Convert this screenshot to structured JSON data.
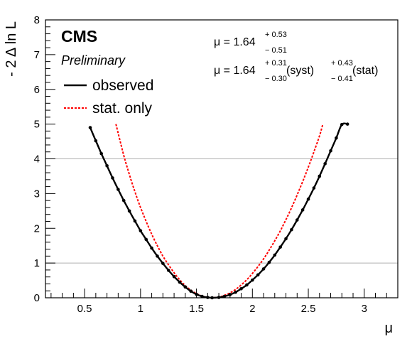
{
  "chart_data": {
    "type": "line",
    "xlabel": "μ",
    "ylabel": "- 2 Δ ln L",
    "xlim": [
      0.15,
      3.3
    ],
    "ylim": [
      0,
      8
    ],
    "x_ticks": [
      {
        "v": 0.5,
        "label": "0.5"
      },
      {
        "v": 1,
        "label": "1"
      },
      {
        "v": 1.5,
        "label": "1.5"
      },
      {
        "v": 2,
        "label": "2"
      },
      {
        "v": 2.5,
        "label": "2.5"
      },
      {
        "v": 3,
        "label": "3"
      }
    ],
    "y_ticks": [
      {
        "v": 0,
        "label": "0"
      },
      {
        "v": 1,
        "label": "1"
      },
      {
        "v": 2,
        "label": "2"
      },
      {
        "v": 3,
        "label": "3"
      },
      {
        "v": 4,
        "label": "4"
      },
      {
        "v": 5,
        "label": "5"
      },
      {
        "v": 6,
        "label": "6"
      },
      {
        "v": 7,
        "label": "7"
      },
      {
        "v": 8,
        "label": "8"
      }
    ],
    "reference_lines": [
      1,
      4
    ],
    "series": [
      {
        "name": "observed",
        "color": "#000000",
        "style": "solid",
        "markers": true,
        "x": [
          0.55,
          0.6,
          0.65,
          0.7,
          0.75,
          0.8,
          0.85,
          0.9,
          0.95,
          1.0,
          1.05,
          1.1,
          1.15,
          1.2,
          1.25,
          1.3,
          1.35,
          1.4,
          1.45,
          1.5,
          1.55,
          1.6,
          1.64,
          1.7,
          1.75,
          1.8,
          1.85,
          1.9,
          1.95,
          2.0,
          2.05,
          2.1,
          2.15,
          2.2,
          2.25,
          2.3,
          2.35,
          2.4,
          2.45,
          2.5,
          2.55,
          2.6,
          2.65,
          2.7,
          2.75,
          2.8,
          2.85
        ],
        "y": [
          4.9,
          4.52,
          4.15,
          3.8,
          3.45,
          3.12,
          2.8,
          2.5,
          2.21,
          1.93,
          1.68,
          1.43,
          1.2,
          0.99,
          0.79,
          0.61,
          0.45,
          0.31,
          0.19,
          0.1,
          0.04,
          0.01,
          0.0,
          0.01,
          0.04,
          0.09,
          0.16,
          0.26,
          0.37,
          0.51,
          0.66,
          0.83,
          1.02,
          1.23,
          1.46,
          1.7,
          1.96,
          2.24,
          2.53,
          2.84,
          3.16,
          3.5,
          3.86,
          4.23,
          4.6,
          4.99,
          5.0
        ]
      },
      {
        "name": "stat. only",
        "color": "#ff0000",
        "style": "dashed",
        "markers": false,
        "x": [
          0.78,
          0.85,
          0.9,
          0.95,
          1.0,
          1.05,
          1.1,
          1.15,
          1.2,
          1.25,
          1.3,
          1.35,
          1.4,
          1.45,
          1.5,
          1.55,
          1.6,
          1.64,
          1.7,
          1.75,
          1.8,
          1.85,
          1.9,
          1.95,
          2.0,
          2.05,
          2.1,
          2.15,
          2.2,
          2.25,
          2.3,
          2.35,
          2.4,
          2.45,
          2.5,
          2.55,
          2.6,
          2.63
        ],
        "y": [
          5.0,
          4.1,
          3.55,
          3.05,
          2.6,
          2.2,
          1.83,
          1.5,
          1.2,
          0.95,
          0.72,
          0.52,
          0.35,
          0.22,
          0.12,
          0.05,
          0.01,
          0.0,
          0.02,
          0.07,
          0.14,
          0.24,
          0.37,
          0.52,
          0.7,
          0.9,
          1.12,
          1.37,
          1.64,
          1.93,
          2.25,
          2.59,
          2.96,
          3.35,
          3.76,
          4.2,
          4.66,
          5.0
        ]
      }
    ],
    "annotations": {
      "experiment": "CMS",
      "status": "Preliminary",
      "result1": {
        "prefix": "μ = 1.64",
        "up": "+ 0.53",
        "down": "− 0.51"
      },
      "result2": {
        "prefix": "μ = 1.64",
        "syst_up": "+ 0.31",
        "syst_down": "− 0.30",
        "syst_label": "(syst)",
        "stat_up": "+ 0.43",
        "stat_down": "− 0.41",
        "stat_label": "(stat)"
      }
    }
  }
}
